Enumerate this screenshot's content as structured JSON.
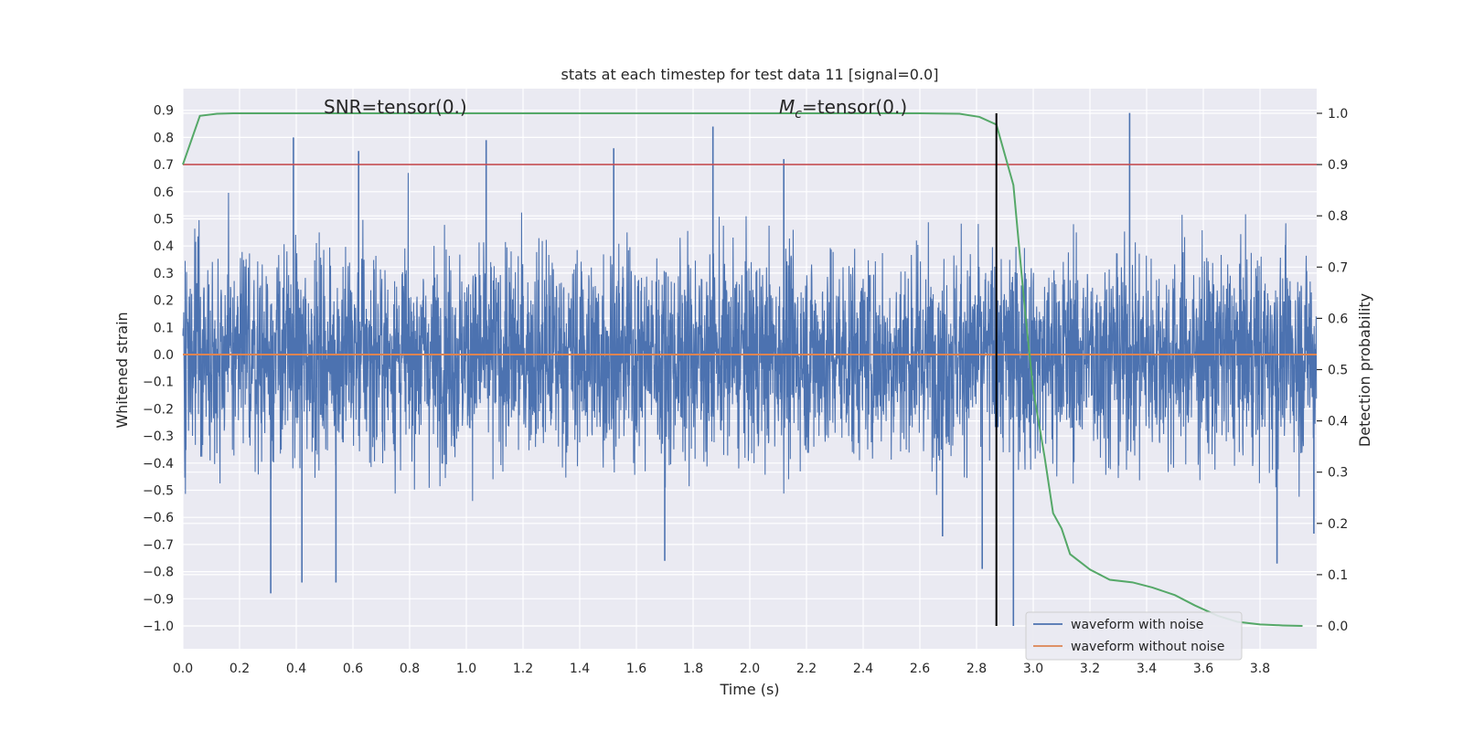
{
  "chart_data": {
    "type": "line",
    "title": "stats at each timestep for test data 11 [signal=0.0]",
    "xlabel": "Time (s)",
    "ylabel": "Whitened strain",
    "y2label": "Detection probability",
    "xlim": [
      0.0,
      4.0
    ],
    "ylim": [
      -1.09,
      0.97
    ],
    "y2lim": [
      -0.047,
      1.047
    ],
    "xticks": [
      "0.0",
      "0.2",
      "0.4",
      "0.6",
      "0.8",
      "1.0",
      "1.2",
      "1.4",
      "1.6",
      "1.8",
      "2.0",
      "2.2",
      "2.4",
      "2.6",
      "2.8",
      "3.0",
      "3.2",
      "3.4",
      "3.6",
      "3.8"
    ],
    "yticks": [
      "0.9",
      "0.8",
      "0.7",
      "0.6",
      "0.5",
      "0.4",
      "0.3",
      "0.2",
      "0.1",
      "0.0",
      "−0.1",
      "−0.2",
      "−0.3",
      "−0.4",
      "−0.5",
      "−0.6",
      "−0.7",
      "−0.8",
      "−0.9",
      "−1.0"
    ],
    "y2ticks": [
      "1.0",
      "0.9",
      "0.8",
      "0.7",
      "0.6",
      "0.5",
      "0.4",
      "0.3",
      "0.2",
      "0.1",
      "0.0"
    ],
    "annotations": {
      "snr": "SNR=tensor(0.)",
      "mc_symbol": "M",
      "mc_sub": "c",
      "mc_value": "=tensor(0.)"
    },
    "grid": true,
    "legend_position": "lower-right",
    "series": [
      {
        "name": "waveform with noise",
        "color": "#4c72b0",
        "axis": "left",
        "description": "noisy whitened strain, 2048 Hz over 4 s, values roughly within [-1.0, 0.88]",
        "spikes": [
          {
            "x": 0.31,
            "y": -0.88
          },
          {
            "x": 0.39,
            "y": 0.8
          },
          {
            "x": 0.42,
            "y": -0.84
          },
          {
            "x": 0.54,
            "y": -0.84
          },
          {
            "x": 0.62,
            "y": 0.75
          },
          {
            "x": 1.07,
            "y": 0.79
          },
          {
            "x": 1.52,
            "y": 0.76
          },
          {
            "x": 1.7,
            "y": -0.76
          },
          {
            "x": 1.87,
            "y": 0.84
          },
          {
            "x": 2.12,
            "y": 0.72
          },
          {
            "x": 2.68,
            "y": -0.67
          },
          {
            "x": 2.82,
            "y": -0.79
          },
          {
            "x": 2.93,
            "y": -1.0
          },
          {
            "x": 3.34,
            "y": 0.89
          },
          {
            "x": 3.86,
            "y": -0.77
          },
          {
            "x": 3.99,
            "y": -0.66
          }
        ]
      },
      {
        "name": "waveform without noise",
        "color": "#dd8452",
        "axis": "left",
        "x": [
          0.0,
          4.0
        ],
        "y": [
          0.0,
          0.0
        ]
      },
      {
        "name": "",
        "color": "#55a868",
        "axis": "right",
        "x": [
          0.0,
          0.06,
          0.12,
          0.18,
          2.6,
          2.74,
          2.81,
          2.87,
          2.93,
          2.97,
          3.0,
          3.04,
          3.07,
          3.1,
          3.13,
          3.2,
          3.27,
          3.35,
          3.42,
          3.5,
          3.57,
          3.65,
          3.72,
          3.8,
          3.88,
          3.95
        ],
        "y": [
          0.9,
          0.995,
          0.999,
          1.0,
          1.0,
          0.999,
          0.993,
          0.978,
          0.86,
          0.62,
          0.46,
          0.33,
          0.22,
          0.19,
          0.14,
          0.11,
          0.09,
          0.085,
          0.075,
          0.06,
          0.04,
          0.02,
          0.008,
          0.003,
          0.001,
          0.0
        ]
      }
    ],
    "threshold": {
      "axis": "right",
      "y": 0.9,
      "color": "#c44e52"
    },
    "vline": {
      "x": 2.87,
      "color": "#000000"
    }
  }
}
